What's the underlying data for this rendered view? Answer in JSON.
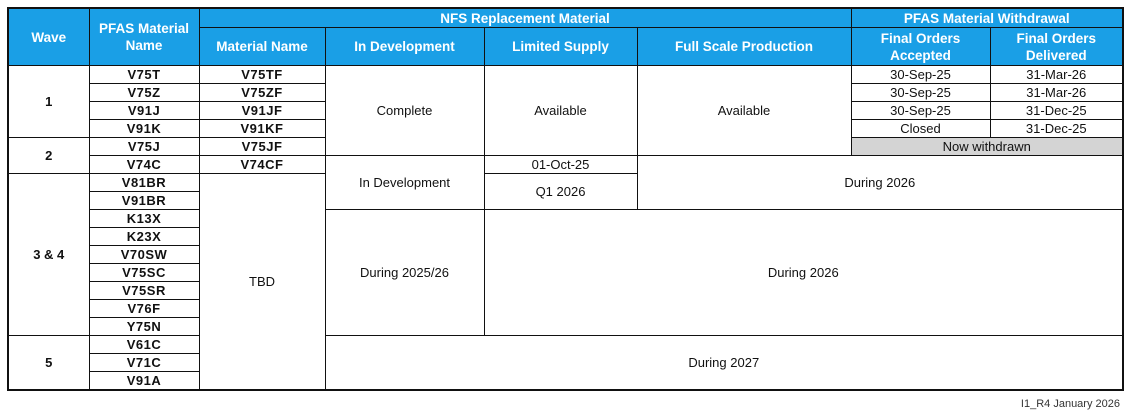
{
  "headers": {
    "wave": "Wave",
    "pfas_material_name": "PFAS Material Name",
    "nfs_group": "NFS Replacement Material",
    "pfas_withdrawal_group": "PFAS Material Withdrawal",
    "material_name": "Material Name",
    "in_development": "In Development",
    "limited_supply": "Limited Supply",
    "full_scale_production": "Full Scale Production",
    "final_orders_accepted": "Final Orders Accepted",
    "final_orders_delivered": "Final Orders Delivered"
  },
  "waves": {
    "w1": "1",
    "w2": "2",
    "w34": "3 & 4",
    "w5": "5"
  },
  "pfas_materials": [
    "V75T",
    "V75Z",
    "V91J",
    "V91K",
    "V75J",
    "V74C",
    "V81BR",
    "V91BR",
    "K13X",
    "K23X",
    "V70SW",
    "V75SC",
    "V75SR",
    "V76F",
    "Y75N",
    "V61C",
    "V71C",
    "V91A"
  ],
  "nfs_materials": [
    "V75TF",
    "V75ZF",
    "V91JF",
    "V91KF",
    "V75JF",
    "V74CF"
  ],
  "tbd": "TBD",
  "status": {
    "complete": "Complete",
    "available_limited": "Available",
    "available_full": "Available",
    "in_development": "In Development",
    "oct_25": "01-Oct-25",
    "q1_2026": "Q1 2026",
    "during_2026_a": "During 2026",
    "during_2025_26": "During 2025/26",
    "during_2026_b": "During 2026",
    "during_2027": "During 2027",
    "now_withdrawn": "Now withdrawn"
  },
  "withdrawal": {
    "accepted": [
      "30-Sep-25",
      "30-Sep-25",
      "30-Sep-25",
      "Closed"
    ],
    "delivered": [
      "31-Mar-26",
      "31-Mar-26",
      "31-Dec-25",
      "31-Dec-25"
    ]
  },
  "footer": "I1_R4 January 2026"
}
